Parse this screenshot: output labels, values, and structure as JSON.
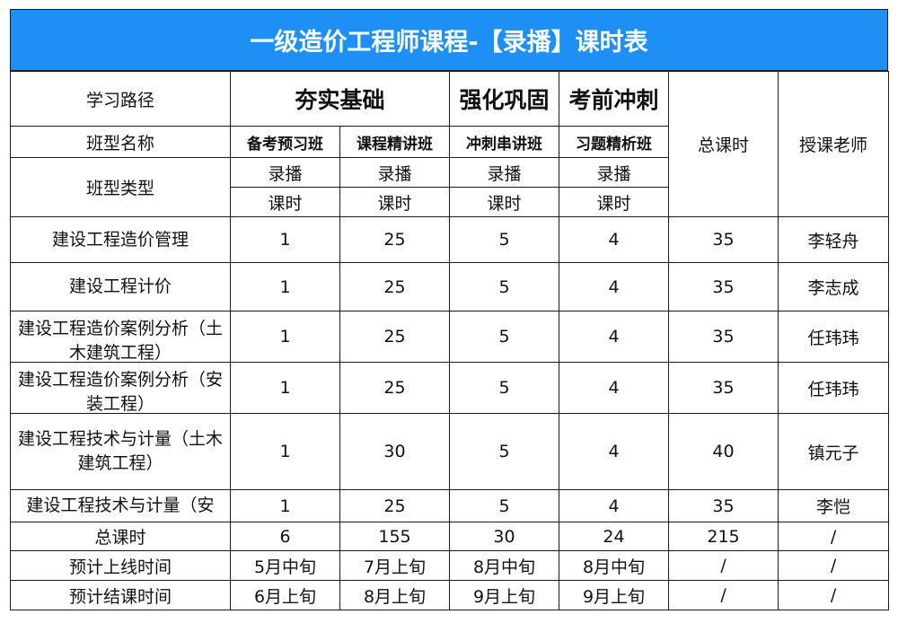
{
  "title": "一级造价工程师课程-【录播】课时表",
  "header": {
    "path_label": "学习路径",
    "class_name_label": "班型名称",
    "class_type_label": "班型类型",
    "total_hours_label": "总课时",
    "teacher_label": "授课老师",
    "stages": [
      "夯实基础",
      "强化巩固",
      "考前冲刺"
    ],
    "classes": [
      "备考预习班",
      "课程精讲班",
      "冲刺串讲班",
      "习题精析班"
    ],
    "types": [
      "录播",
      "录播",
      "录播",
      "录播"
    ],
    "units": [
      "课时",
      "课时",
      "课时",
      "课时"
    ]
  },
  "rows": [
    {
      "name": "建设工程造价管理",
      "values": [
        "1",
        "25",
        "5",
        "4"
      ],
      "total": "35",
      "teacher": "李轻舟"
    },
    {
      "name": "建设工程计价",
      "values": [
        "1",
        "25",
        "5",
        "4"
      ],
      "total": "35",
      "teacher": "李志成"
    },
    {
      "name": "建设工程造价案例分析（土木建筑工程）",
      "values": [
        "1",
        "25",
        "5",
        "4"
      ],
      "total": "35",
      "teacher": "任玮玮"
    },
    {
      "name": "建设工程造价案例分析（安装工程）",
      "values": [
        "1",
        "25",
        "5",
        "4"
      ],
      "total": "35",
      "teacher": "任玮玮"
    },
    {
      "name": "建设工程技术与计量（土木建筑工程）",
      "values": [
        "1",
        "30",
        "5",
        "4"
      ],
      "total": "40",
      "teacher": "镇元子"
    },
    {
      "name": "建设工程技术与计量（安",
      "values": [
        "1",
        "25",
        "5",
        "4"
      ],
      "total": "35",
      "teacher": "李恺"
    }
  ],
  "summary": [
    {
      "name": "总课时",
      "values": [
        "6",
        "155",
        "30",
        "24"
      ],
      "total": "215",
      "teacher": "/"
    },
    {
      "name": "预计上线时间",
      "values": [
        "5月中旬",
        "7月上旬",
        "8月中旬",
        "8月中旬"
      ],
      "total": "/",
      "teacher": "/"
    },
    {
      "name": "预计结课时间",
      "values": [
        "6月上旬",
        "8月上旬",
        "9月上旬",
        "9月上旬"
      ],
      "total": "/",
      "teacher": "/"
    }
  ]
}
